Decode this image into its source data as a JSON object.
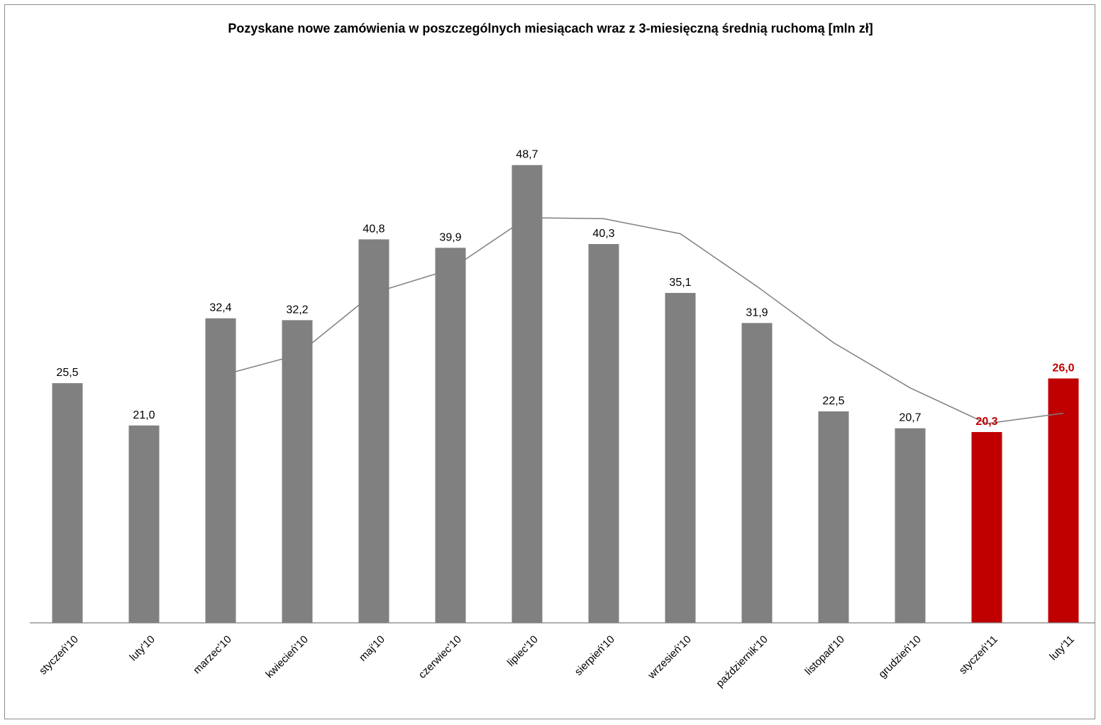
{
  "chart_data": {
    "type": "bar",
    "title": "Pozyskane nowe zamówienia w poszczególnych miesiącach wraz z 3-miesięczną średnią ruchomą [mln zł]",
    "xlabel": "",
    "ylabel": "",
    "ylim": [
      0,
      55
    ],
    "grid": false,
    "legend": "none",
    "categories": [
      "styczeń'10",
      "luty'10",
      "marzec'10",
      "kwiecień'10",
      "maj'10",
      "czerwiec'10",
      "lipiec'10",
      "sierpień'10",
      "wrzesień'10",
      "październik'10",
      "listopad'10",
      "grudzień'10",
      "styczeń'11",
      "luty'11"
    ],
    "values": [
      25.5,
      21.0,
      32.4,
      32.2,
      40.8,
      39.9,
      48.7,
      40.3,
      35.1,
      31.9,
      22.5,
      20.7,
      20.3,
      26.0
    ],
    "value_labels": [
      "25,5",
      "21,0",
      "32,4",
      "32,2",
      "40,8",
      "39,9",
      "48,7",
      "40,3",
      "35,1",
      "31,9",
      "22,5",
      "20,7",
      "20,3",
      "26,0"
    ],
    "highlighted": [
      false,
      false,
      false,
      false,
      false,
      false,
      false,
      false,
      false,
      false,
      false,
      false,
      true,
      true
    ],
    "series": [
      {
        "type": "line",
        "values": [
          null,
          null,
          26.3,
          28.5,
          35.1,
          37.6,
          43.1,
          43.0,
          41.4,
          35.8,
          29.8,
          25.0,
          21.2,
          22.3
        ]
      }
    ],
    "colors": {
      "bar": "#808080",
      "highlight": "#c00000",
      "line": "#7f7f7f"
    }
  }
}
